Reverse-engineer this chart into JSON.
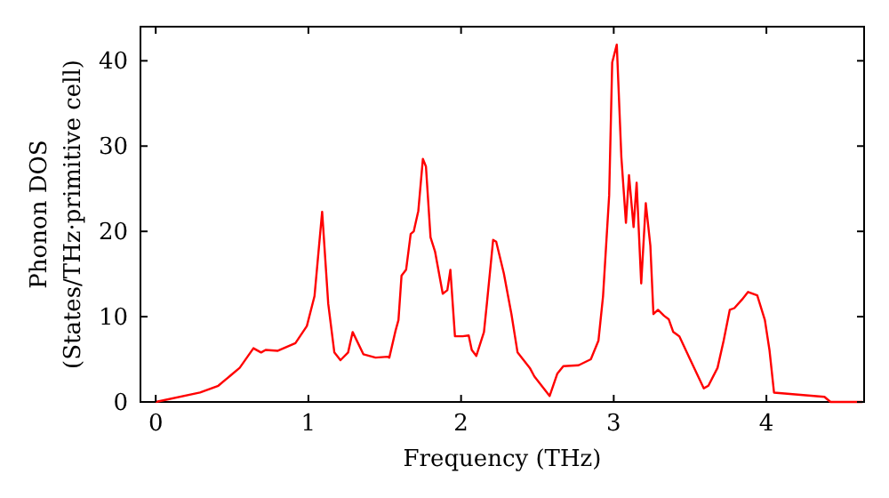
{
  "chart_data": {
    "type": "line",
    "xlabel": "Frequency (THz)",
    "ylabel": "Phonon DOS\n(States/THz·primitive cell)",
    "xlim": [
      -0.1,
      4.64
    ],
    "ylim": [
      0,
      44
    ],
    "xticks": [
      0,
      1,
      2,
      3,
      4
    ],
    "yticks": [
      0,
      10,
      20,
      30,
      40
    ],
    "grid": false,
    "marker": "none",
    "line_style": "solid",
    "series": [
      {
        "color": "#ff0000",
        "x": [
          0,
          0.29,
          0.41,
          0.49,
          0.55,
          0.64,
          0.69,
          0.72,
          0.8,
          0.915,
          0.99,
          1.04,
          1.09,
          1.13,
          1.17,
          1.21,
          1.26,
          1.29,
          1.36,
          1.44,
          1.52,
          1.53,
          1.57,
          1.59,
          1.61,
          1.64,
          1.67,
          1.69,
          1.72,
          1.75,
          1.77,
          1.8,
          1.83,
          1.88,
          1.91,
          1.93,
          1.96,
          2.01,
          2.05,
          2.07,
          2.1,
          2.15,
          2.17,
          2.21,
          2.23,
          2.28,
          2.33,
          2.37,
          2.45,
          2.48,
          2.58,
          2.63,
          2.67,
          2.77,
          2.85,
          2.9,
          2.93,
          2.97,
          2.99,
          3.02,
          3.05,
          3.08,
          3.1,
          3.13,
          3.15,
          3.18,
          3.21,
          3.24,
          3.26,
          3.29,
          3.33,
          3.36,
          3.39,
          3.43,
          3.5,
          3.59,
          3.62,
          3.68,
          3.72,
          3.76,
          3.79,
          3.84,
          3.88,
          3.94,
          3.99,
          4.02,
          4.05,
          4.38,
          4.42,
          4.63
        ],
        "values": [
          0,
          1.1,
          1.9,
          3.1,
          4.0,
          6.3,
          5.8,
          6.1,
          6.0,
          6.9,
          8.9,
          12.4,
          22.3,
          11.5,
          5.8,
          4.9,
          5.8,
          8.2,
          5.6,
          5.2,
          5.3,
          5.2,
          8.3,
          9.6,
          14.8,
          15.5,
          19.7,
          20.0,
          22.4,
          28.5,
          27.6,
          19.3,
          17.6,
          12.7,
          13.1,
          15.5,
          7.7,
          7.7,
          7.8,
          6.1,
          5.4,
          8.2,
          11.7,
          19.0,
          18.8,
          15.1,
          10.3,
          5.8,
          4.0,
          3.0,
          0.7,
          3.3,
          4.2,
          4.3,
          5.0,
          7.2,
          12.4,
          24.2,
          39.8,
          41.9,
          28.7,
          21.0,
          26.6,
          20.5,
          25.7,
          13.9,
          23.3,
          18.3,
          10.3,
          10.8,
          10.1,
          9.7,
          8.2,
          7.7,
          5.0,
          1.6,
          1.9,
          4.0,
          7.2,
          10.8,
          11.0,
          12.0,
          12.9,
          12.5,
          9.6,
          6.1,
          1.1,
          0.6,
          0,
          0
        ]
      }
    ]
  }
}
